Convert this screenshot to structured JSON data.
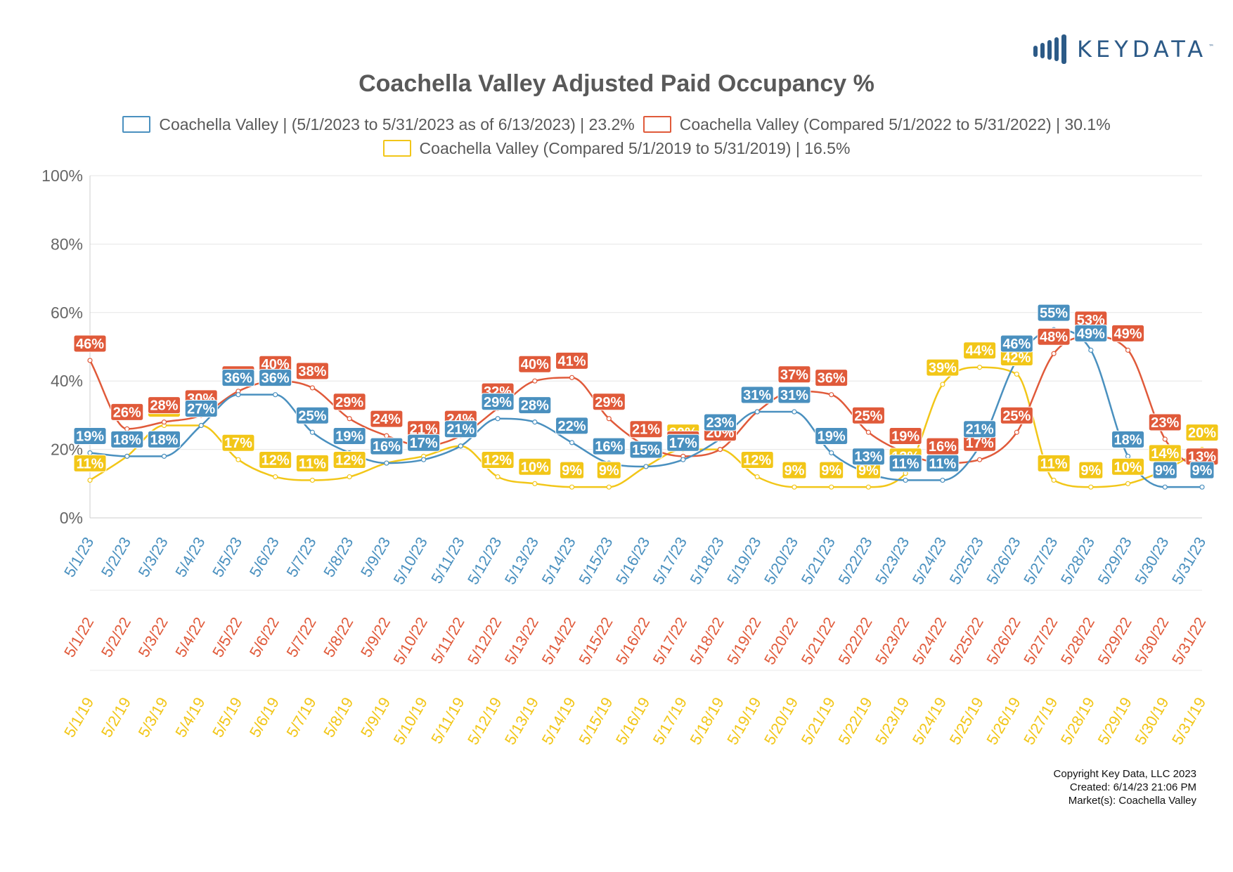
{
  "logo": {
    "text": "KEYDATA",
    "tm": "™"
  },
  "chart_data": {
    "type": "line",
    "title": "Coachella Valley Adjusted Paid Occupancy %",
    "ylim": [
      0,
      100
    ],
    "y_ticks": [
      "100%",
      "80%",
      "60%",
      "40%",
      "20%",
      "0%"
    ],
    "grid": true,
    "legend_position": "top",
    "series": [
      {
        "name": "Coachella Valley | (5/1/2023 to 5/31/2023 as of 6/13/2023) | 23.2%",
        "color": "#4a90bf",
        "x_labels": [
          "5/1/23",
          "5/2/23",
          "5/3/23",
          "5/4/23",
          "5/5/23",
          "5/6/23",
          "5/7/23",
          "5/8/23",
          "5/9/23",
          "5/10/23",
          "5/11/23",
          "5/12/23",
          "5/13/23",
          "5/14/23",
          "5/15/23",
          "5/16/23",
          "5/17/23",
          "5/18/23",
          "5/19/23",
          "5/20/23",
          "5/21/23",
          "5/22/23",
          "5/23/23",
          "5/24/23",
          "5/25/23",
          "5/26/23",
          "5/27/23",
          "5/28/23",
          "5/29/23",
          "5/30/23",
          "5/31/23"
        ],
        "values": [
          19,
          18,
          18,
          27,
          36,
          36,
          25,
          19,
          16,
          17,
          21,
          29,
          28,
          22,
          16,
          15,
          17,
          23,
          31,
          31,
          19,
          13,
          11,
          11,
          21,
          46,
          55,
          49,
          18,
          9,
          9
        ],
        "labels": [
          "19%",
          "18%",
          "18%",
          "27%",
          "36%",
          "36%",
          "25%",
          "19%",
          "16%",
          "17%",
          "21%",
          "29%",
          "28%",
          "22%",
          "16%",
          "15%",
          "17%",
          "23%",
          "31%",
          "31%",
          "19%",
          "13%",
          "11%",
          "11%",
          "21%",
          "46%",
          "55%",
          "49%",
          "18%",
          "9%",
          "9%"
        ]
      },
      {
        "name": "Coachella Valley (Compared 5/1/2022 to 5/31/2022) | 30.1%",
        "color": "#e05a3a",
        "x_labels": [
          "5/1/22",
          "5/2/22",
          "5/3/22",
          "5/4/22",
          "5/5/22",
          "5/6/22",
          "5/7/22",
          "5/8/22",
          "5/9/22",
          "5/10/22",
          "5/11/22",
          "5/12/22",
          "5/13/22",
          "5/14/22",
          "5/15/22",
          "5/16/22",
          "5/17/22",
          "5/18/22",
          "5/19/22",
          "5/20/22",
          "5/21/22",
          "5/22/22",
          "5/23/22",
          "5/24/22",
          "5/25/22",
          "5/26/22",
          "5/27/22",
          "5/28/22",
          "5/29/22",
          "5/30/22",
          "5/31/22"
        ],
        "values": [
          46,
          26,
          28,
          30,
          37,
          40,
          38,
          29,
          24,
          21,
          24,
          32,
          40,
          41,
          29,
          21,
          18,
          20,
          31,
          37,
          36,
          25,
          19,
          16,
          17,
          25,
          48,
          53,
          49,
          23,
          13
        ],
        "labels": [
          "46%",
          "26%",
          "28%",
          "30%",
          "37%",
          "40%",
          "38%",
          "29%",
          "24%",
          "21%",
          "24%",
          "32%",
          "40%",
          "41%",
          "29%",
          "21%",
          "18%",
          "20%",
          "31%",
          "37%",
          "36%",
          "25%",
          "19%",
          "16%",
          "17%",
          "25%",
          "48%",
          "53%",
          "49%",
          "23%",
          "13%"
        ]
      },
      {
        "name": "Coachella Valley (Compared 5/1/2019 to 5/31/2019) | 16.5%",
        "color": "#f2c618",
        "x_labels": [
          "5/1/19",
          "5/2/19",
          "5/3/19",
          "5/4/19",
          "5/5/19",
          "5/6/19",
          "5/7/19",
          "5/8/19",
          "5/9/19",
          "5/10/19",
          "5/11/19",
          "5/12/19",
          "5/13/19",
          "5/14/19",
          "5/15/19",
          "5/16/19",
          "5/17/19",
          "5/18/19",
          "5/19/19",
          "5/20/19",
          "5/21/19",
          "5/22/19",
          "5/23/19",
          "5/24/19",
          "5/25/19",
          "5/26/19",
          "5/27/19",
          "5/28/19",
          "5/29/19",
          "5/30/19",
          "5/31/19"
        ],
        "values": [
          11,
          18,
          27,
          27,
          17,
          12,
          11,
          12,
          16,
          18,
          21,
          12,
          10,
          9,
          9,
          15,
          20,
          20,
          12,
          9,
          9,
          9,
          13,
          39,
          44,
          42,
          11,
          9,
          10,
          14,
          20
        ],
        "labels": [
          "11%",
          "18%",
          "27%",
          "27%",
          "17%",
          "12%",
          "11%",
          "12%",
          "16%",
          "18%",
          "21%",
          "12%",
          "10%",
          "9%",
          "9%",
          "15%",
          "20%",
          "20%",
          "12%",
          "9%",
          "9%",
          "9%",
          "13%",
          "39%",
          "44%",
          "42%",
          "11%",
          "9%",
          "10%",
          "14%",
          "20%"
        ]
      }
    ]
  },
  "copyright": {
    "line1": "Copyright Key Data, LLC 2023",
    "line2": "Created: 6/14/23 21:06 PM",
    "line3": "Market(s):  Coachella Valley"
  }
}
